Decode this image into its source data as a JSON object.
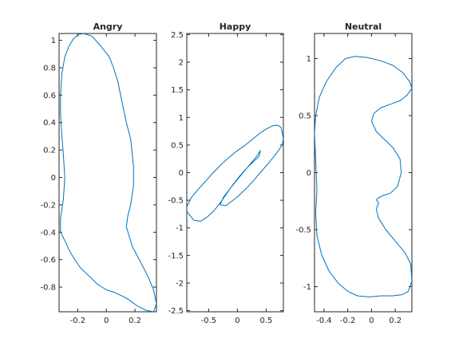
{
  "colors": {
    "series": "#0072BD",
    "axes": "#262626",
    "background": "#ffffff"
  },
  "chart_data": [
    {
      "type": "line",
      "title": "Angry",
      "xlabel": "",
      "ylabel": "",
      "xlim": [
        -0.33,
        0.35
      ],
      "ylim": [
        -0.98,
        1.05
      ],
      "grid": false,
      "xticks": [
        -0.2,
        0,
        0.2
      ],
      "xtick_labels": [
        "-0.2",
        "0",
        "0.2"
      ],
      "yticks": [
        -0.8,
        -0.6,
        -0.4,
        -0.2,
        0,
        0.2,
        0.4,
        0.6,
        0.8,
        1
      ],
      "ytick_labels": [
        "-0.8",
        "-0.6",
        "-0.4",
        "-0.2",
        "0",
        "0.2",
        "0.4",
        "0.6",
        "0.8",
        "1"
      ],
      "series": [
        {
          "x": [
            -0.16,
            -0.1,
            -0.04,
            0.02,
            0.05,
            0.08,
            0.1,
            0.12,
            0.14,
            0.17,
            0.18,
            0.19,
            0.19,
            0.17,
            0.15,
            0.14,
            0.18,
            0.24,
            0.29,
            0.33,
            0.35,
            0.33,
            0.28,
            0.22,
            0.14,
            0.06,
            0.0,
            -0.06,
            -0.12,
            -0.18,
            -0.22,
            -0.26,
            -0.29,
            -0.32,
            -0.32,
            -0.3,
            -0.29,
            -0.3,
            -0.31,
            -0.32,
            -0.32,
            -0.31,
            -0.29,
            -0.26,
            -0.23,
            -0.2,
            -0.16
          ],
          "y": [
            1.05,
            1.03,
            0.96,
            0.88,
            0.8,
            0.7,
            0.6,
            0.5,
            0.4,
            0.28,
            0.18,
            0.08,
            -0.06,
            -0.2,
            -0.28,
            -0.36,
            -0.5,
            -0.62,
            -0.72,
            -0.82,
            -0.92,
            -0.98,
            -0.97,
            -0.94,
            -0.88,
            -0.84,
            -0.82,
            -0.78,
            -0.72,
            -0.66,
            -0.6,
            -0.53,
            -0.46,
            -0.4,
            -0.3,
            -0.16,
            0.0,
            0.16,
            0.3,
            0.46,
            0.6,
            0.76,
            0.88,
            0.96,
            1.01,
            1.04,
            1.05
          ]
        }
      ]
    },
    {
      "type": "line",
      "title": "Happy",
      "xlabel": "",
      "ylabel": "",
      "xlim": [
        -0.88,
        0.8
      ],
      "ylim": [
        -2.52,
        2.52
      ],
      "grid": false,
      "xticks": [
        -0.5,
        0,
        0.5
      ],
      "xtick_labels": [
        "-0.5",
        "0",
        "0.5"
      ],
      "yticks": [
        -2.5,
        -2,
        -1.5,
        -1,
        -0.5,
        0,
        0.5,
        1,
        1.5,
        2,
        2.5
      ],
      "ytick_labels": [
        "-2.5",
        "-2",
        "-1.5",
        "-1",
        "-0.5",
        "0",
        "0.5",
        "1",
        "1.5",
        "2",
        "2.5"
      ],
      "series": [
        {
          "x": [
            -0.88,
            -0.8,
            -0.68,
            -0.55,
            -0.42,
            -0.28,
            -0.14,
            0.0,
            0.14,
            0.28,
            0.4,
            0.52,
            0.62,
            0.7,
            0.76,
            0.8,
            0.78,
            0.7,
            0.58,
            0.44,
            0.3,
            0.16,
            0.02,
            -0.1,
            -0.2,
            -0.3,
            -0.24,
            -0.12,
            0.02,
            0.18,
            0.34,
            0.4,
            0.38,
            0.3,
            0.18,
            0.04,
            -0.1,
            -0.2,
            -0.3,
            -0.4,
            -0.52,
            -0.64,
            -0.76,
            -0.88
          ],
          "y": [
            -0.62,
            -0.45,
            -0.3,
            -0.15,
            0.0,
            0.15,
            0.28,
            0.4,
            0.5,
            0.62,
            0.72,
            0.8,
            0.85,
            0.86,
            0.82,
            0.62,
            0.5,
            0.38,
            0.22,
            0.05,
            -0.12,
            -0.28,
            -0.42,
            -0.52,
            -0.6,
            -0.58,
            -0.44,
            -0.28,
            -0.1,
            0.1,
            0.3,
            0.4,
            0.3,
            0.22,
            0.1,
            -0.06,
            -0.25,
            -0.4,
            -0.55,
            -0.68,
            -0.8,
            -0.88,
            -0.86,
            -0.7
          ]
        }
      ]
    },
    {
      "type": "line",
      "title": "Neutral",
      "xlabel": "",
      "ylabel": "",
      "xlim": [
        -0.48,
        0.34
      ],
      "ylim": [
        -1.22,
        1.22
      ],
      "grid": false,
      "xticks": [
        -0.4,
        -0.2,
        0,
        0.2
      ],
      "xtick_labels": [
        "-0.4",
        "-0.2",
        "0",
        "0.2"
      ],
      "yticks": [
        -1,
        -0.5,
        0,
        0.5,
        1
      ],
      "ytick_labels": [
        "-1",
        "-0.5",
        "0",
        "0.5",
        "1"
      ],
      "series": [
        {
          "x": [
            -0.14,
            -0.04,
            0.08,
            0.18,
            0.26,
            0.32,
            0.34,
            0.3,
            0.24,
            0.16,
            0.08,
            0.02,
            0.0,
            0.04,
            0.1,
            0.18,
            0.24,
            0.25,
            0.22,
            0.16,
            0.1,
            0.06,
            0.04,
            0.06,
            0.04,
            0.06,
            0.12,
            0.2,
            0.28,
            0.33,
            0.34,
            0.31,
            0.26,
            0.18,
            0.08,
            -0.02,
            -0.12,
            -0.2,
            -0.28,
            -0.36,
            -0.42,
            -0.46,
            -0.47,
            -0.46,
            -0.47,
            -0.48,
            -0.47,
            -0.44,
            -0.38,
            -0.3,
            -0.22,
            -0.14
          ],
          "y": [
            1.02,
            1.01,
            0.98,
            0.94,
            0.88,
            0.8,
            0.74,
            0.68,
            0.63,
            0.6,
            0.57,
            0.52,
            0.45,
            0.36,
            0.3,
            0.22,
            0.12,
            0.0,
            -0.12,
            -0.18,
            -0.2,
            -0.22,
            -0.24,
            -0.26,
            -0.32,
            -0.4,
            -0.5,
            -0.6,
            -0.7,
            -0.8,
            -0.95,
            -1.04,
            -1.07,
            -1.08,
            -1.08,
            -1.09,
            -1.08,
            -1.04,
            -0.97,
            -0.86,
            -0.72,
            -0.55,
            -0.35,
            -0.15,
            0.1,
            0.35,
            0.5,
            0.66,
            0.8,
            0.92,
            1.0,
            1.02
          ]
        }
      ]
    }
  ]
}
